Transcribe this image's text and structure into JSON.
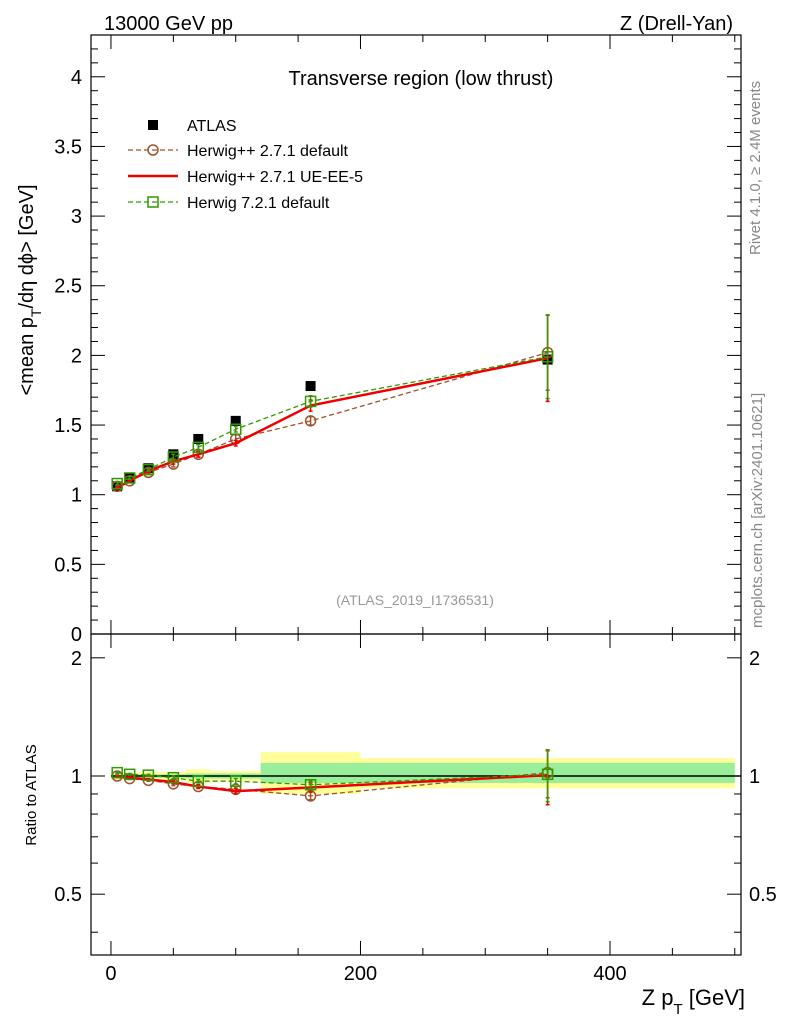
{
  "header": {
    "left": "13000 GeV pp",
    "right": "Z (Drell-Yan)"
  },
  "side": {
    "rivet": "Rivet 4.1.0, ≥ 2.4M events",
    "mcplots": "mcplots.cern.ch [arXiv:2401.10621]"
  },
  "chart_data": {
    "type": "line",
    "title": "Transverse region (low thrust)",
    "analysis_label": "(ATLAS_2019_I1736531)",
    "ylabel": "<mean p_T/dη dϕ> [GeV]",
    "ratio_ylabel": "Ratio to ATLAS",
    "xlabel": "Z p_T [GeV]",
    "xlim": [
      -16,
      505
    ],
    "ylim": [
      0,
      4.3
    ],
    "ratio_ylim": [
      0.35,
      2.3
    ],
    "x_ticks": [
      "0",
      "200",
      "400"
    ],
    "y_ticks": [
      "0",
      "0.5",
      "1",
      "1.5",
      "2",
      "2.5",
      "3",
      "3.5",
      "4"
    ],
    "ratio_ticks": [
      "0.5",
      "1",
      "2"
    ],
    "bin_edges": [
      0,
      10,
      20,
      40,
      60,
      80,
      120,
      200,
      500
    ],
    "x": [
      5,
      15,
      30,
      50,
      70,
      100,
      160,
      350
    ],
    "series": [
      {
        "name": "ATLAS",
        "color": "#000000",
        "marker": "filled-square",
        "values": [
          1.06,
          1.12,
          1.19,
          1.29,
          1.4,
          1.53,
          1.78,
          1.97
        ],
        "ratio": [
          1,
          1,
          1,
          1,
          1,
          1,
          1,
          1
        ]
      },
      {
        "name": "Herwig++ 2.7.1 default",
        "color": "#a0522d",
        "marker": "open-circle",
        "style": "dashed",
        "values": [
          1.06,
          1.1,
          1.16,
          1.22,
          1.29,
          1.4,
          1.53,
          2.02
        ],
        "errors": [
          0.01,
          0.01,
          0.01,
          0.02,
          0.02,
          0.03,
          0.03,
          0.27
        ],
        "ratio": [
          1.0,
          0.985,
          0.975,
          0.955,
          0.94,
          0.925,
          0.89,
          1.02
        ],
        "ratio_errors": [
          0.005,
          0.005,
          0.005,
          0.01,
          0.01,
          0.015,
          0.02,
          0.14
        ]
      },
      {
        "name": "Herwig++ 2.7.1 UE-EE-5",
        "color": "#ee0000",
        "marker": "none",
        "style": "solid",
        "values": [
          1.05,
          1.1,
          1.17,
          1.24,
          1.29,
          1.37,
          1.64,
          1.98
        ],
        "errors": [
          0.01,
          0.01,
          0.01,
          0.02,
          0.02,
          0.02,
          0.04,
          0.31
        ],
        "ratio": [
          0.995,
          0.99,
          0.98,
          0.965,
          0.94,
          0.915,
          0.935,
          1.005
        ],
        "ratio_errors": [
          0.005,
          0.005,
          0.005,
          0.01,
          0.01,
          0.015,
          0.025,
          0.16
        ]
      },
      {
        "name": "Herwig 7.2.1 default",
        "color": "#339900",
        "marker": "open-square",
        "style": "dashed",
        "values": [
          1.08,
          1.12,
          1.18,
          1.27,
          1.34,
          1.47,
          1.67,
          1.99
        ],
        "errors": [
          0.01,
          0.01,
          0.01,
          0.02,
          0.02,
          0.02,
          0.04,
          0.3
        ],
        "ratio": [
          1.02,
          1.01,
          1.005,
          0.99,
          0.97,
          0.97,
          0.95,
          1.01
        ],
        "ratio_errors": [
          0.005,
          0.005,
          0.005,
          0.01,
          0.01,
          0.015,
          0.02,
          0.15
        ]
      }
    ],
    "ratio_band_yellow": [
      [
        0.98,
        1.02
      ],
      [
        0.98,
        1.02
      ],
      [
        0.975,
        1.025
      ],
      [
        0.975,
        1.025
      ],
      [
        0.96,
        1.04
      ],
      [
        0.97,
        1.03
      ],
      [
        0.9,
        1.15
      ],
      [
        0.93,
        1.11
      ]
    ],
    "ratio_band_green": [
      [
        0.99,
        1.01
      ],
      [
        0.99,
        1.01
      ],
      [
        0.99,
        1.01
      ],
      [
        0.99,
        1.01
      ],
      [
        0.985,
        1.015
      ],
      [
        0.985,
        1.015
      ],
      [
        0.96,
        1.08
      ],
      [
        0.96,
        1.08
      ]
    ]
  }
}
